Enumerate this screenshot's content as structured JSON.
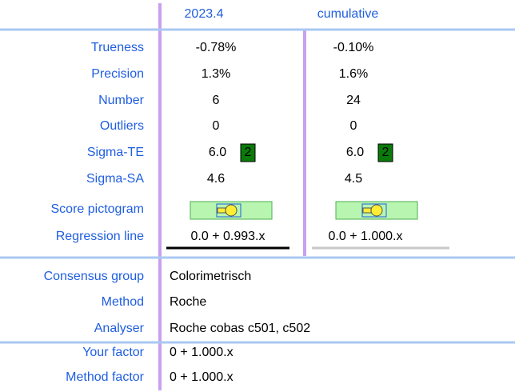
{
  "header": {
    "columns": [
      "2023.4",
      "cumulative"
    ]
  },
  "results": [
    {
      "label": "Trueness",
      "values": [
        "-0.78%",
        "-0.10%"
      ]
    },
    {
      "label": "Precision",
      "values": [
        "1.3%",
        "1.6%"
      ]
    },
    {
      "label": "Number",
      "values": [
        "6",
        "24"
      ]
    },
    {
      "label": "Outliers",
      "values": [
        "0",
        "0"
      ]
    },
    {
      "label": "Sigma-TE",
      "values": [
        "6.0",
        "6.0"
      ],
      "badges": [
        "2",
        "2"
      ]
    },
    {
      "label": "Sigma-SA",
      "values": [
        "4.6",
        "4.5"
      ]
    },
    {
      "label": "Score pictogram"
    },
    {
      "label": "Regression line",
      "values": [
        "0.0 + 0.993.x",
        "0.0 + 1.000.x"
      ]
    }
  ],
  "group": [
    {
      "label": "Consensus group",
      "value": "Colorimetrisch"
    },
    {
      "label": "Method",
      "value": "Roche"
    },
    {
      "label": "Analyser",
      "value": "Roche cobas c501, c502"
    }
  ],
  "factors": [
    {
      "label": "Your factor",
      "value": "0 + 1.000.x"
    },
    {
      "label": "Method factor",
      "value": "0 + 1.000.x"
    }
  ]
}
